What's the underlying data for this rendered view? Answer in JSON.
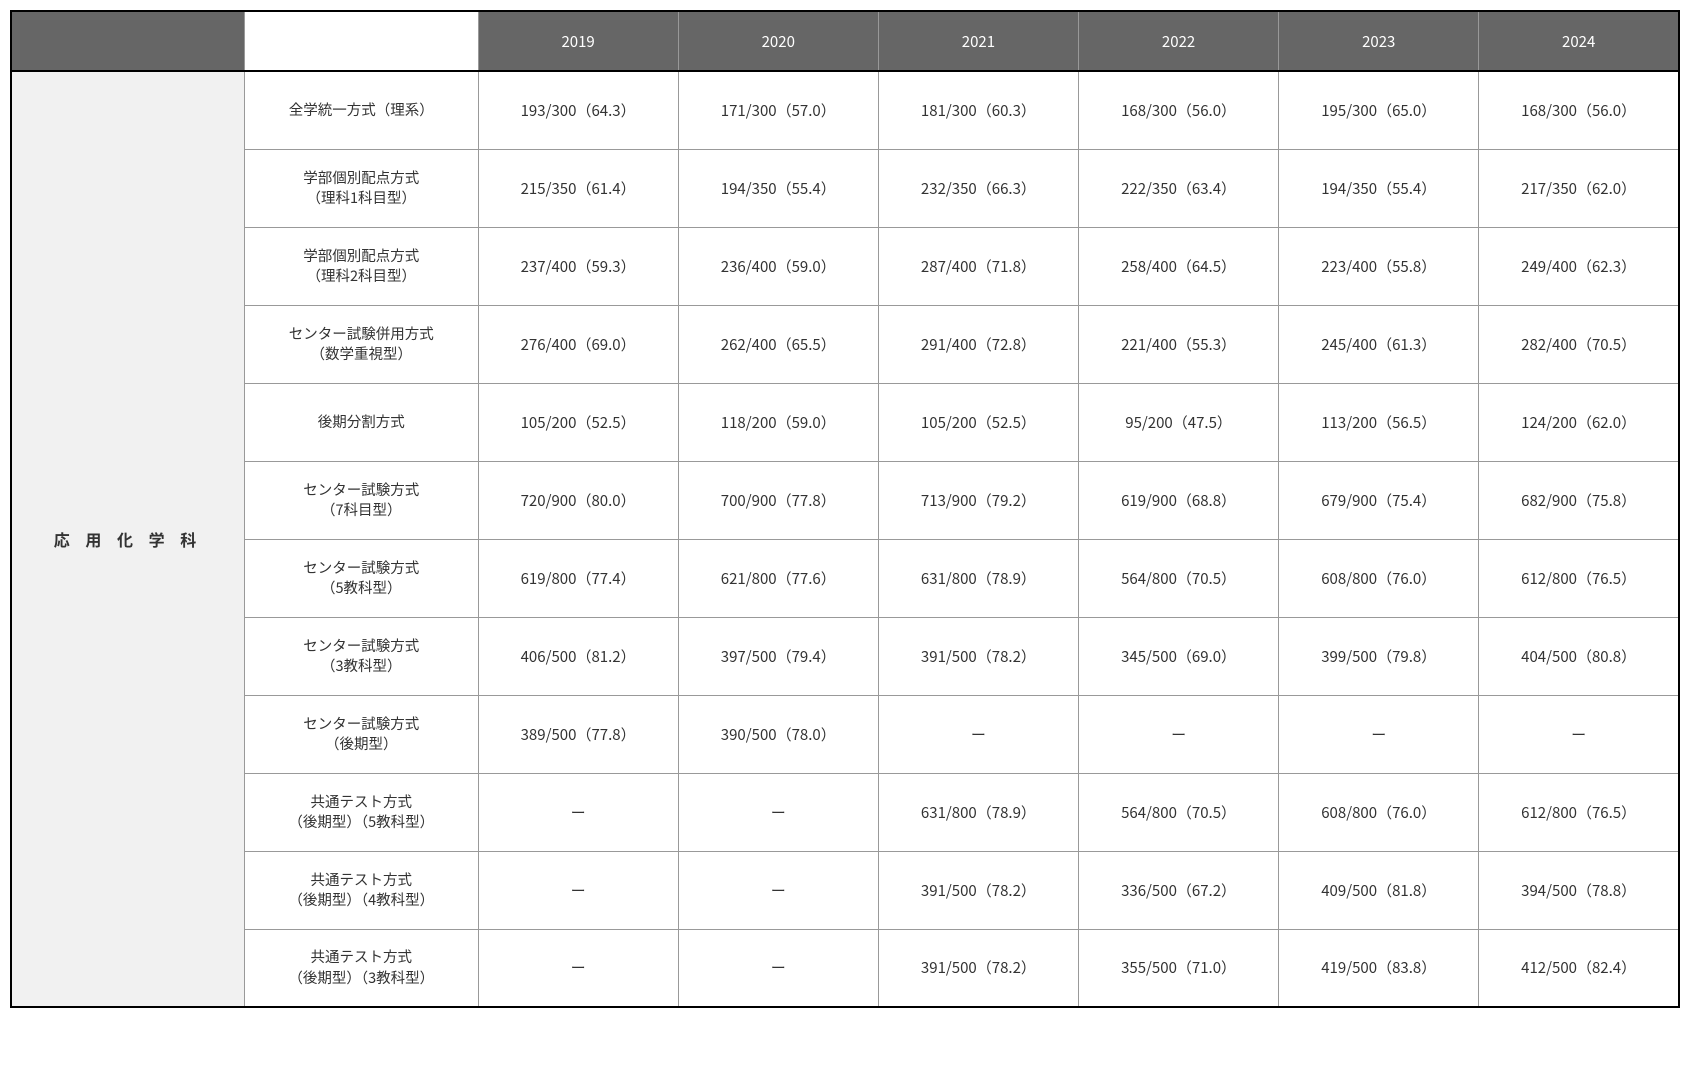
{
  "department": "応 用 化 学 科",
  "years": [
    "2019",
    "2020",
    "2021",
    "2022",
    "2023",
    "2024"
  ],
  "rows": [
    {
      "method": "全学統一方式（理系）",
      "values": [
        "193/300（64.3）",
        "171/300（57.0）",
        "181/300（60.3）",
        "168/300（56.0）",
        "195/300（65.0）",
        "168/300（56.0）"
      ]
    },
    {
      "method": "学部個別配点方式\n（理科1科目型）",
      "values": [
        "215/350（61.4）",
        "194/350（55.4）",
        "232/350（66.3）",
        "222/350（63.4）",
        "194/350（55.4）",
        "217/350（62.0）"
      ]
    },
    {
      "method": "学部個別配点方式\n（理科2科目型）",
      "values": [
        "237/400（59.3）",
        "236/400（59.0）",
        "287/400（71.8）",
        "258/400（64.5）",
        "223/400（55.8）",
        "249/400（62.3）"
      ]
    },
    {
      "method": "センター試験併用方式\n（数学重視型）",
      "values": [
        "276/400（69.0）",
        "262/400（65.5）",
        "291/400（72.8）",
        "221/400（55.3）",
        "245/400（61.3）",
        "282/400（70.5）"
      ]
    },
    {
      "method": "後期分割方式",
      "values": [
        "105/200（52.5）",
        "118/200（59.0）",
        "105/200（52.5）",
        "95/200（47.5）",
        "113/200（56.5）",
        "124/200（62.0）"
      ]
    },
    {
      "method": "センター試験方式\n（7科目型）",
      "values": [
        "720/900（80.0）",
        "700/900（77.8）",
        "713/900（79.2）",
        "619/900（68.8）",
        "679/900（75.4）",
        "682/900（75.8）"
      ]
    },
    {
      "method": "センター試験方式\n（5教科型）",
      "values": [
        "619/800（77.4）",
        "621/800（77.6）",
        "631/800（78.9）",
        "564/800（70.5）",
        "608/800（76.0）",
        "612/800（76.5）"
      ]
    },
    {
      "method": "センター試験方式\n（3教科型）",
      "values": [
        "406/500（81.2）",
        "397/500（79.4）",
        "391/500（78.2）",
        "345/500（69.0）",
        "399/500（79.8）",
        "404/500（80.8）"
      ]
    },
    {
      "method": "センター試験方式\n（後期型）",
      "values": [
        "389/500（77.8）",
        "390/500（78.0）",
        "ー",
        "ー",
        "ー",
        "ー"
      ]
    },
    {
      "method": "共通テスト方式\n（後期型）（5教科型）",
      "values": [
        "ー",
        "ー",
        "631/800（78.9）",
        "564/800（70.5）",
        "608/800（76.0）",
        "612/800（76.5）"
      ]
    },
    {
      "method": "共通テスト方式\n（後期型）（4教科型）",
      "values": [
        "ー",
        "ー",
        "391/500（78.2）",
        "336/500（67.2）",
        "409/500（81.8）",
        "394/500（78.8）"
      ]
    },
    {
      "method": "共通テスト方式\n（後期型）（3教科型）",
      "values": [
        "ー",
        "ー",
        "391/500（78.2）",
        "355/500（71.0）",
        "419/500（83.8）",
        "412/500（82.4）"
      ]
    }
  ],
  "colors": {
    "header_bg": "#666666",
    "header_fg": "#ffffff",
    "dept_bg": "#f1f1f1",
    "border": "#999999",
    "outer_border": "#000000",
    "cell_bg": "#ffffff",
    "text": "#333333"
  }
}
